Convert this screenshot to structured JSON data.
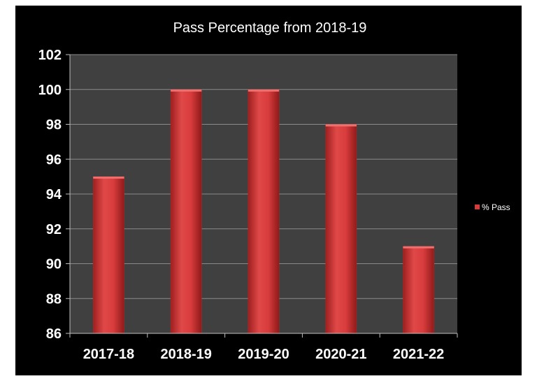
{
  "chart_data": {
    "type": "bar",
    "title": "Pass Percentage  from 2018-19",
    "categories": [
      "2017-18",
      "2018-19",
      "2019-20",
      "2020-21",
      "2021-22"
    ],
    "series": [
      {
        "name": "% Pass",
        "values": [
          95,
          100,
          100,
          98,
          91
        ],
        "color": "#d83a3a"
      }
    ],
    "xlabel": "",
    "ylabel": "",
    "ylim": [
      86,
      102
    ],
    "yticks": [
      86,
      88,
      90,
      92,
      94,
      96,
      98,
      100,
      102
    ],
    "grid": true,
    "legend_position": "right",
    "plot_background": "#404040",
    "page_background": "#000000"
  }
}
